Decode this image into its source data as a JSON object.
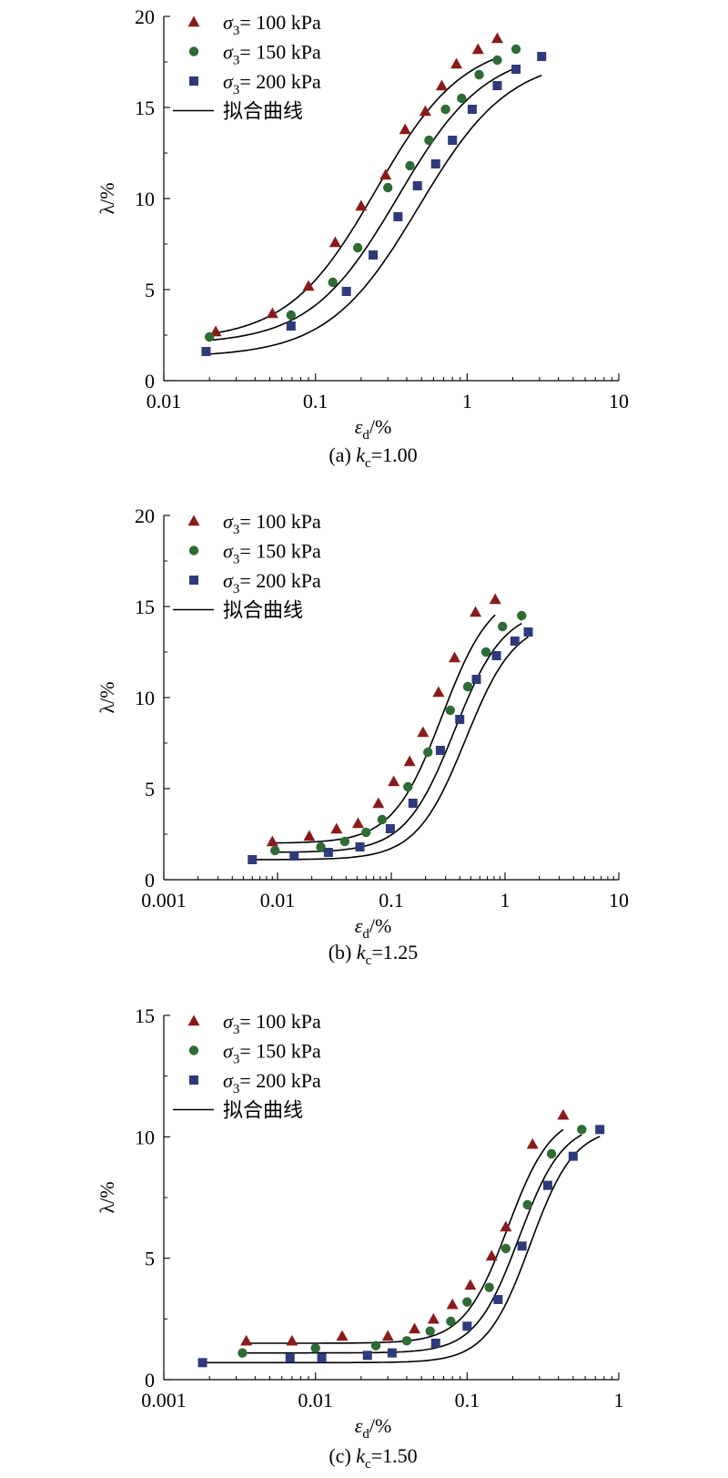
{
  "chart_data": [
    {
      "type": "scatter",
      "xscale": "log",
      "xlim": [
        0.01,
        10
      ],
      "ylim": [
        0,
        20
      ],
      "xticks": [
        "0.01",
        "0.1",
        "1",
        "10"
      ],
      "yticks": [
        "0",
        "5",
        "10",
        "15",
        "20"
      ],
      "xlabel_sym": "ε",
      "xlabel_sub": "d",
      "xlabel_tail": "/%",
      "ylabel": "λ/%",
      "caption_pre": "(a) ",
      "caption_k": "k",
      "caption_sub": "c",
      "caption_val": "=1.00",
      "legend": {
        "position": "top-left",
        "entries": [
          {
            "sym": "σ",
            "sub": "3",
            "rest": "= 100 kPa",
            "marker": "triangle",
            "color": "#8b1a1a"
          },
          {
            "sym": "σ",
            "sub": "3",
            "rest": "= 150 kPa",
            "marker": "circle",
            "color": "#2e6b35"
          },
          {
            "sym": "σ",
            "sub": "3",
            "rest": "= 200 kPa",
            "marker": "square",
            "color": "#2f3a7a"
          }
        ],
        "fit_label": "拟合曲线"
      },
      "series": [
        {
          "name": "σ3= 100 kPa",
          "marker": "triangle",
          "color": "#8b1a1a",
          "x": [
            0.022,
            0.052,
            0.09,
            0.135,
            0.2,
            0.29,
            0.39,
            0.53,
            0.68,
            0.85,
            1.18,
            1.58
          ],
          "y": [
            2.7,
            3.7,
            5.2,
            7.6,
            9.6,
            11.3,
            13.8,
            14.8,
            16.2,
            17.4,
            18.2,
            18.8
          ],
          "fit": {
            "a": 2.2,
            "b": 18.7,
            "x0": 0.25,
            "p": 1.5,
            "xmin": 0.021,
            "xmax": 1.58
          }
        },
        {
          "name": "σ3= 150 kPa",
          "marker": "circle",
          "color": "#2e6b35",
          "x": [
            0.02,
            0.069,
            0.13,
            0.19,
            0.3,
            0.42,
            0.56,
            0.72,
            0.92,
            1.2,
            1.58,
            2.1
          ],
          "y": [
            2.4,
            3.6,
            5.4,
            7.3,
            10.6,
            11.8,
            13.2,
            14.9,
            15.5,
            16.8,
            17.6,
            18.2
          ],
          "fit": {
            "a": 2.0,
            "b": 18.2,
            "x0": 0.35,
            "p": 1.5,
            "xmin": 0.02,
            "xmax": 2.1
          }
        },
        {
          "name": "σ3= 200 kPa",
          "marker": "square",
          "color": "#2f3a7a",
          "x": [
            0.019,
            0.069,
            0.16,
            0.24,
            0.35,
            0.47,
            0.62,
            0.8,
            1.08,
            1.58,
            2.1,
            3.1
          ],
          "y": [
            1.6,
            3.0,
            4.9,
            6.9,
            9.0,
            10.7,
            11.9,
            13.2,
            14.9,
            16.2,
            17.1,
            17.8
          ],
          "fit": {
            "a": 1.3,
            "b": 17.8,
            "x0": 0.48,
            "p": 1.45,
            "xmin": 0.019,
            "xmax": 3.1
          }
        }
      ]
    },
    {
      "type": "scatter",
      "xscale": "log",
      "xlim": [
        0.001,
        10
      ],
      "ylim": [
        0,
        20
      ],
      "xticks": [
        "0.001",
        "0.01",
        "0.1",
        "1",
        "10"
      ],
      "yticks": [
        "0",
        "5",
        "10",
        "15",
        "20"
      ],
      "xlabel_sym": "ε",
      "xlabel_sub": "d",
      "xlabel_tail": "/%",
      "ylabel": "λ/%",
      "caption_pre": "(b) ",
      "caption_k": "k",
      "caption_sub": "c",
      "caption_val": "=1.25",
      "legend": {
        "position": "top-left",
        "entries": [
          {
            "sym": "σ",
            "sub": "3",
            "rest": "= 100 kPa",
            "marker": "triangle",
            "color": "#8b1a1a"
          },
          {
            "sym": "σ",
            "sub": "3",
            "rest": "= 150 kPa",
            "marker": "circle",
            "color": "#2e6b35"
          },
          {
            "sym": "σ",
            "sub": "3",
            "rest": "= 200 kPa",
            "marker": "square",
            "color": "#2f3a7a"
          }
        ],
        "fit_label": "拟合曲线"
      },
      "series": [
        {
          "name": "σ3= 100 kPa",
          "marker": "triangle",
          "color": "#8b1a1a",
          "x": [
            0.009,
            0.019,
            0.033,
            0.051,
            0.077,
            0.105,
            0.145,
            0.19,
            0.26,
            0.36,
            0.55,
            0.82
          ],
          "y": [
            2.1,
            2.4,
            2.8,
            3.1,
            4.2,
            5.4,
            6.5,
            8.1,
            10.3,
            12.2,
            14.7,
            15.4
          ],
          "fit": {
            "a": 2.0,
            "b": 16.0,
            "x0": 0.28,
            "p": 2.0,
            "xmin": 0.009,
            "xmax": 0.82
          }
        },
        {
          "name": "σ3= 150 kPa",
          "marker": "circle",
          "color": "#2e6b35",
          "x": [
            0.0095,
            0.024,
            0.039,
            0.06,
            0.083,
            0.14,
            0.21,
            0.33,
            0.47,
            0.68,
            0.95,
            1.4
          ],
          "y": [
            1.6,
            1.8,
            2.1,
            2.6,
            3.3,
            5.1,
            7.0,
            9.3,
            10.6,
            12.5,
            13.9,
            14.5
          ],
          "fit": {
            "a": 1.5,
            "b": 14.9,
            "x0": 0.36,
            "p": 2.0,
            "xmin": 0.0095,
            "xmax": 1.4
          }
        },
        {
          "name": "σ3= 200 kPa",
          "marker": "square",
          "color": "#2f3a7a",
          "x": [
            0.006,
            0.014,
            0.028,
            0.053,
            0.098,
            0.155,
            0.27,
            0.4,
            0.56,
            0.84,
            1.22,
            1.6
          ],
          "y": [
            1.1,
            1.3,
            1.5,
            1.8,
            2.8,
            4.2,
            7.1,
            8.8,
            11.0,
            12.3,
            13.1,
            13.6
          ],
          "fit": {
            "a": 1.1,
            "b": 14.3,
            "x0": 0.45,
            "p": 2.0,
            "xmin": 0.006,
            "xmax": 1.6
          }
        }
      ]
    },
    {
      "type": "scatter",
      "xscale": "log",
      "xlim": [
        0.001,
        1
      ],
      "ylim": [
        0,
        15
      ],
      "xticks": [
        "0.001",
        "0.01",
        "0.1",
        "1"
      ],
      "yticks": [
        "0",
        "5",
        "10",
        "15"
      ],
      "xlabel_sym": "ε",
      "xlabel_sub": "d",
      "xlabel_tail": "/%",
      "ylabel": "λ/%",
      "caption_pre": "(c) ",
      "caption_k": "k",
      "caption_sub": "c",
      "caption_val": "=1.50",
      "legend": {
        "position": "top-left",
        "entries": [
          {
            "sym": "σ",
            "sub": "3",
            "rest": "= 100 kPa",
            "marker": "triangle",
            "color": "#8b1a1a"
          },
          {
            "sym": "σ",
            "sub": "3",
            "rest": "= 150 kPa",
            "marker": "circle",
            "color": "#2e6b35"
          },
          {
            "sym": "σ",
            "sub": "3",
            "rest": "= 200 kPa",
            "marker": "square",
            "color": "#2f3a7a"
          }
        ],
        "fit_label": "拟合曲线"
      },
      "series": [
        {
          "name": "σ3= 100 kPa",
          "marker": "triangle",
          "color": "#8b1a1a",
          "x": [
            0.0035,
            0.007,
            0.015,
            0.03,
            0.045,
            0.06,
            0.08,
            0.105,
            0.145,
            0.18,
            0.27,
            0.43
          ],
          "y": [
            1.6,
            1.6,
            1.8,
            1.8,
            2.1,
            2.5,
            3.1,
            3.9,
            5.1,
            6.3,
            9.7,
            10.9
          ],
          "fit": {
            "a": 1.5,
            "b": 11.0,
            "x0": 0.185,
            "p": 3.0,
            "xmin": 0.0035,
            "xmax": 0.43
          }
        },
        {
          "name": "σ3= 150 kPa",
          "marker": "circle",
          "color": "#2e6b35",
          "x": [
            0.0033,
            0.01,
            0.025,
            0.04,
            0.057,
            0.078,
            0.1,
            0.14,
            0.18,
            0.25,
            0.36,
            0.57
          ],
          "y": [
            1.1,
            1.3,
            1.4,
            1.6,
            2.0,
            2.4,
            3.2,
            3.8,
            5.4,
            7.2,
            9.3,
            10.3
          ],
          "fit": {
            "a": 1.1,
            "b": 10.6,
            "x0": 0.22,
            "p": 3.0,
            "xmin": 0.0033,
            "xmax": 0.57
          }
        },
        {
          "name": "σ3= 200 kPa",
          "marker": "square",
          "color": "#2f3a7a",
          "x": [
            0.0018,
            0.0068,
            0.011,
            0.022,
            0.032,
            0.062,
            0.1,
            0.16,
            0.23,
            0.34,
            0.5,
            0.75
          ],
          "y": [
            0.7,
            0.9,
            0.9,
            1.0,
            1.1,
            1.5,
            2.2,
            3.3,
            5.5,
            8.0,
            9.2,
            10.3
          ],
          "fit": {
            "a": 0.7,
            "b": 10.4,
            "x0": 0.26,
            "p": 3.0,
            "xmin": 0.0018,
            "xmax": 0.75
          }
        }
      ]
    }
  ]
}
